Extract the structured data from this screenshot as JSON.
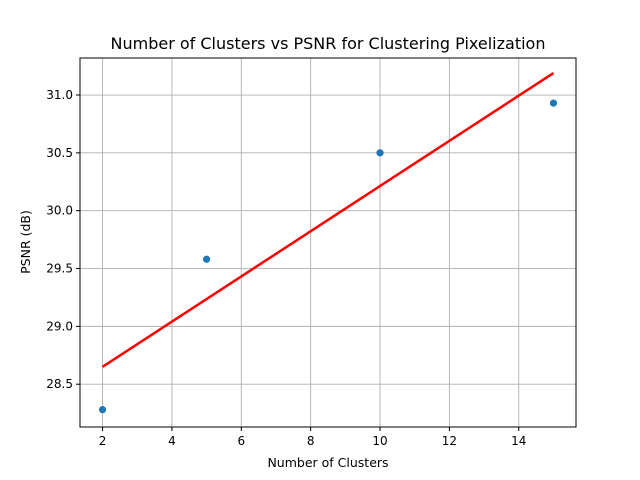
{
  "chart_data": {
    "type": "scatter",
    "title": "Number of Clusters vs PSNR for Clustering Pixelization",
    "xlabel": "Number of Clusters",
    "ylabel": "PSNR (dB)",
    "xlim": [
      1.35,
      15.65
    ],
    "ylim": [
      28.13,
      31.32
    ],
    "xticks": [
      2,
      4,
      6,
      8,
      10,
      12,
      14
    ],
    "xtick_labels": [
      "2",
      "4",
      "6",
      "8",
      "10",
      "12",
      "14"
    ],
    "yticks": [
      28.5,
      29.0,
      29.5,
      30.0,
      30.5,
      31.0
    ],
    "ytick_labels": [
      "28.5",
      "29.0",
      "29.5",
      "30.0",
      "30.5",
      "31.0"
    ],
    "grid": true,
    "series": [
      {
        "type": "scatter",
        "color": "#1f77b4",
        "x": [
          2,
          5,
          10,
          15
        ],
        "y": [
          28.28,
          29.58,
          30.5,
          30.93
        ]
      },
      {
        "type": "line",
        "color": "#ff0000",
        "x": [
          2,
          15
        ],
        "y": [
          28.65,
          31.19
        ]
      }
    ]
  }
}
